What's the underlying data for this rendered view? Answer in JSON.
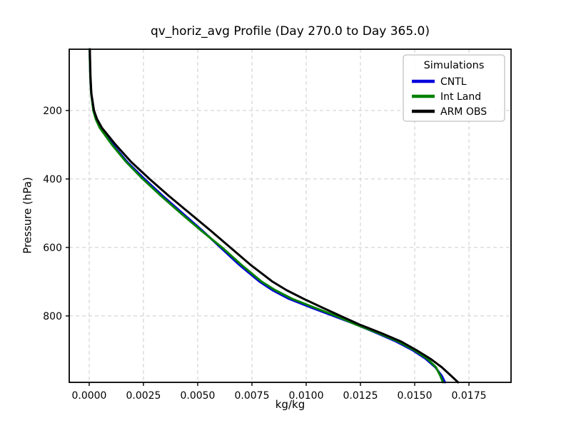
{
  "figure": {
    "background": "#ffffff"
  },
  "chart_data": {
    "type": "line",
    "title": "qv_horiz_avg Profile (Day 270.0 to Day 365.0)",
    "xlabel": "kg/kg",
    "ylabel": "Pressure (hPa)",
    "xlim": [
      -0.00092,
      0.01944
    ],
    "ylim": [
      994,
      21
    ],
    "y_axis_inverted": true,
    "xticks": [
      0.0,
      0.0025,
      0.005,
      0.0075,
      0.01,
      0.0125,
      0.015,
      0.0175
    ],
    "xtick_labels": [
      "0.0000",
      "0.0025",
      "0.0050",
      "0.0075",
      "0.0100",
      "0.0125",
      "0.0150",
      "0.0175"
    ],
    "yticks": [
      200,
      400,
      600,
      800
    ],
    "ytick_labels": [
      "200",
      "400",
      "600",
      "800"
    ],
    "grid": {
      "on": true,
      "style": "dashed",
      "color": "#cccccc"
    },
    "legend": {
      "title": "Simulations",
      "position": "upper right"
    },
    "pressure_levels_hPa": [
      994,
      975,
      950,
      925,
      900,
      875,
      850,
      825,
      800,
      775,
      750,
      725,
      700,
      650,
      600,
      550,
      500,
      450,
      400,
      350,
      300,
      250,
      225,
      200,
      150,
      100,
      50,
      21
    ],
    "series": [
      {
        "name": "CNTL",
        "color": "#0000dd",
        "values": [
          0.0164,
          0.01625,
          0.01595,
          0.0155,
          0.0149,
          0.01415,
          0.01325,
          0.0123,
          0.01125,
          0.0102,
          0.0092,
          0.00845,
          0.00785,
          0.0069,
          0.00605,
          0.0052,
          0.0043,
          0.0034,
          0.00255,
          0.00175,
          0.0011,
          0.0005,
          0.00032,
          0.0002,
          9e-05,
          5e-05,
          3e-05,
          2e-05
        ]
      },
      {
        "name": "Int Land",
        "color": "#008000",
        "values": [
          0.0163,
          0.01618,
          0.01598,
          0.01558,
          0.01498,
          0.01425,
          0.01332,
          0.01228,
          0.01138,
          0.01035,
          0.00935,
          0.00858,
          0.00795,
          0.007,
          0.00612,
          0.00515,
          0.00422,
          0.00332,
          0.00247,
          0.0017,
          0.00105,
          0.00048,
          0.0003,
          0.00019,
          9e-05,
          5e-05,
          3e-05,
          2e-05
        ]
      },
      {
        "name": "ARM OBS",
        "color": "#000000",
        "values": [
          0.017,
          0.01668,
          0.01625,
          0.01572,
          0.01508,
          0.01438,
          0.01345,
          0.01245,
          0.01158,
          0.01072,
          0.00988,
          0.0091,
          0.00845,
          0.00742,
          0.0065,
          0.00558,
          0.00463,
          0.00368,
          0.00278,
          0.00193,
          0.00122,
          0.00058,
          0.00036,
          0.00022,
          0.0001,
          6e-05,
          4e-05,
          3e-05
        ]
      }
    ]
  }
}
